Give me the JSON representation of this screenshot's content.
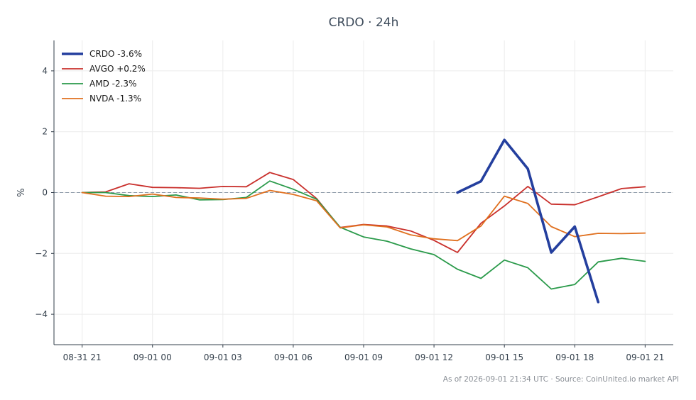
{
  "chart_data": {
    "type": "line",
    "title": "CRDO · 24h",
    "ylabel": "%",
    "xlabel": "",
    "ylim": [
      -5,
      5
    ],
    "yticks": [
      -4,
      -2,
      0,
      2,
      4
    ],
    "ytick_labels": [
      "−4",
      "−2",
      "0",
      "2",
      "4"
    ],
    "xticks": [
      0,
      3,
      6,
      9,
      12,
      15,
      18,
      21,
      24
    ],
    "xtick_labels": [
      "08-31 21",
      "09-01 00",
      "09-01 03",
      "09-01 06",
      "09-01 09",
      "09-01 12",
      "09-01 15",
      "09-01 18",
      "09-01 21"
    ],
    "xlim": [
      -1.2,
      25.2
    ],
    "grid": true,
    "zero_line": true,
    "legend_position": "top-left",
    "series": [
      {
        "name": "CRDO -3.6%",
        "color": "#243f9e",
        "bold": true,
        "x": [
          16,
          17,
          18,
          19,
          20,
          21,
          22
        ],
        "y": [
          0.0,
          0.37,
          1.73,
          0.78,
          -1.97,
          -1.12,
          -3.6
        ]
      },
      {
        "name": "AVGO +0.2%",
        "color": "#c9302c",
        "bold": false,
        "x": [
          0,
          1,
          2,
          3,
          4,
          5,
          6,
          7,
          8,
          9,
          10,
          11,
          12,
          13,
          14,
          15,
          16,
          17,
          18,
          19,
          20,
          21,
          22,
          23,
          24
        ],
        "y": [
          0.0,
          0.02,
          0.29,
          0.17,
          0.16,
          0.14,
          0.2,
          0.19,
          0.66,
          0.43,
          -0.2,
          -1.15,
          -1.05,
          -1.1,
          -1.26,
          -1.57,
          -1.97,
          -1.01,
          -0.44,
          0.2,
          -0.38,
          -0.4,
          -0.14,
          0.13,
          0.19
        ]
      },
      {
        "name": "AMD -2.3%",
        "color": "#2a9a4a",
        "bold": false,
        "x": [
          0,
          1,
          2,
          3,
          4,
          5,
          6,
          7,
          8,
          9,
          10,
          11,
          12,
          13,
          14,
          15,
          16,
          17,
          18,
          19,
          20,
          21,
          22,
          23,
          24
        ],
        "y": [
          0.0,
          0.0,
          -0.1,
          -0.13,
          -0.08,
          -0.24,
          -0.23,
          -0.16,
          0.38,
          0.11,
          -0.22,
          -1.14,
          -1.46,
          -1.6,
          -1.85,
          -2.04,
          -2.52,
          -2.82,
          -2.22,
          -2.47,
          -3.17,
          -3.02,
          -2.28,
          -2.16,
          -2.26
        ]
      },
      {
        "name": "NVDA -1.3%",
        "color": "#e0701f",
        "bold": false,
        "x": [
          0,
          1,
          2,
          3,
          4,
          5,
          6,
          7,
          8,
          9,
          10,
          11,
          12,
          13,
          14,
          15,
          16,
          17,
          18,
          19,
          20,
          21,
          22,
          23,
          24
        ],
        "y": [
          0.0,
          -0.12,
          -0.13,
          -0.05,
          -0.16,
          -0.18,
          -0.22,
          -0.19,
          0.07,
          -0.06,
          -0.27,
          -1.16,
          -1.06,
          -1.13,
          -1.39,
          -1.52,
          -1.58,
          -1.1,
          -0.12,
          -0.36,
          -1.12,
          -1.45,
          -1.34,
          -1.35,
          -1.33
        ]
      }
    ]
  },
  "footer": {
    "text": "As of 2026-09-01 21:34 UTC · Source: CoinUnited.io market API"
  }
}
